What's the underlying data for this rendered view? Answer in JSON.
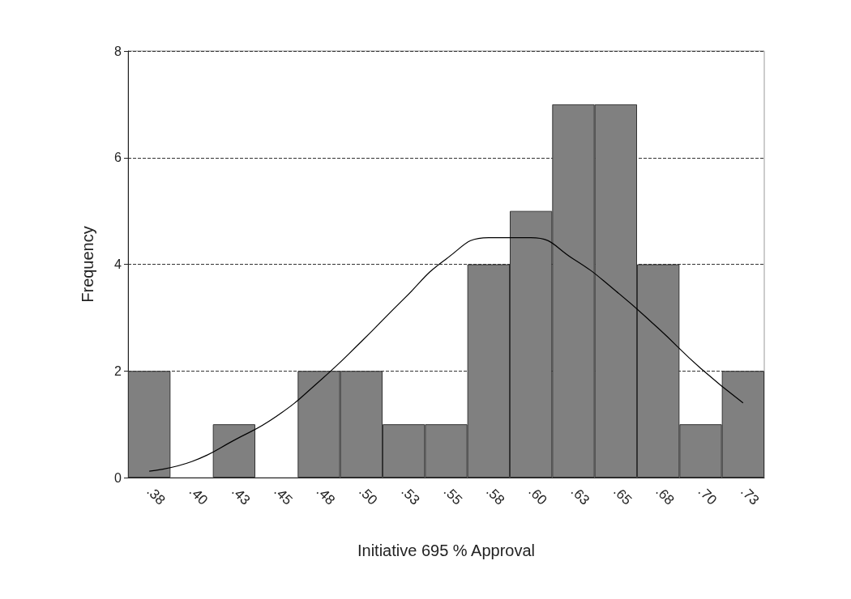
{
  "chart_data": {
    "type": "bar",
    "xlabel": "Initiative 695 % Approval",
    "ylabel": "Frequency",
    "categories": [
      ".38",
      ".40",
      ".43",
      ".45",
      ".48",
      ".50",
      ".53",
      ".55",
      ".58",
      ".60",
      ".63",
      ".65",
      ".68",
      ".70",
      ".73"
    ],
    "series": [
      {
        "color": "#808080",
        "values": [
          2,
          0,
          1,
          0,
          2,
          2,
          1,
          1,
          4,
          5,
          7,
          7,
          4,
          1,
          2
        ]
      },
      {
        "type": "line",
        "color": "#000000",
        "values": [
          0.12,
          0.3,
          0.7,
          1.15,
          1.8,
          2.55,
          3.35,
          4.1,
          4.5,
          4.5,
          4.1,
          3.5,
          2.8,
          2.05,
          1.4
        ]
      }
    ],
    "ylim": [
      0,
      8
    ],
    "yticks": [
      0,
      2,
      4,
      6,
      8
    ],
    "grid": "y",
    "marker": "none"
  }
}
